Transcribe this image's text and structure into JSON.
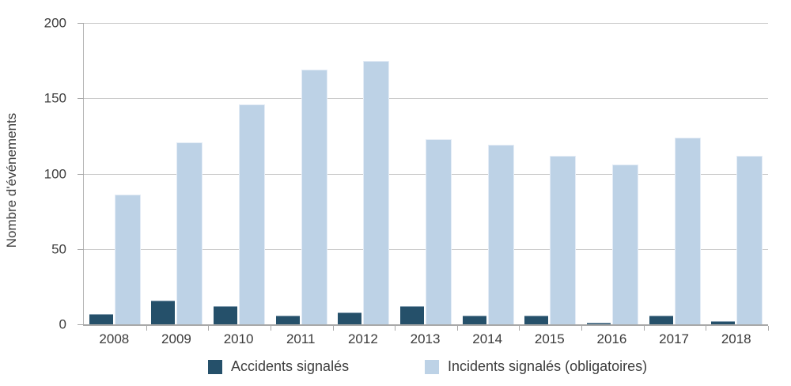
{
  "chart_data": {
    "type": "bar",
    "title": "",
    "ylabel": "Nombre d'événements",
    "categories": [
      "2008",
      "2009",
      "2010",
      "2011",
      "2012",
      "2013",
      "2014",
      "2015",
      "2016",
      "2017",
      "2018"
    ],
    "series": [
      {
        "name": "Accidents signalés",
        "color": "#25506a",
        "values": [
          7,
          16,
          12,
          6,
          8,
          12,
          6,
          6,
          1,
          6,
          2
        ]
      },
      {
        "name": "Incidents signalés (obligatoires)",
        "color": "#bdd2e6",
        "values": [
          86,
          121,
          146,
          169,
          175,
          123,
          119,
          112,
          106,
          124,
          112
        ]
      }
    ],
    "ylim": [
      0,
      200
    ],
    "yticks": [
      0,
      50,
      100,
      150,
      200
    ],
    "grid": true,
    "legend_position": "bottom",
    "axis_color": "#a8a8a8",
    "gridline_color": "#cacaca"
  }
}
